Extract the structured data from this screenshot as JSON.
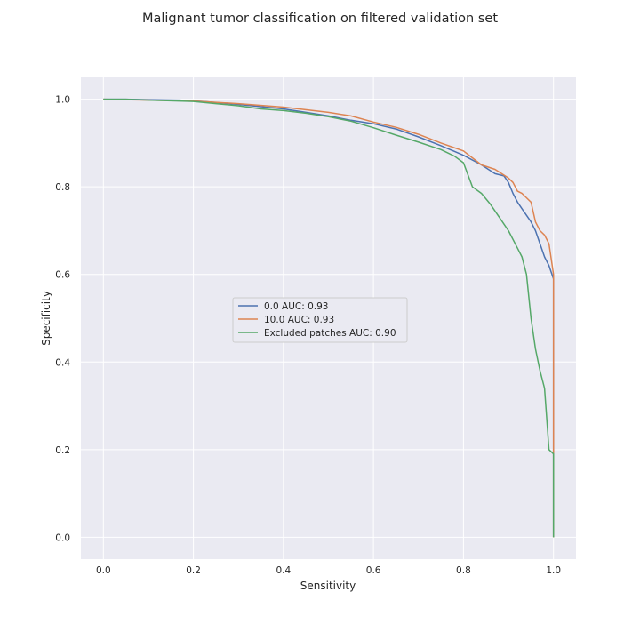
{
  "chart_data": {
    "type": "line",
    "title": "Malignant tumor classification on filtered validation set",
    "xlabel": "Sensitivity",
    "ylabel": "Specificity",
    "xlim": [
      -0.05,
      1.05
    ],
    "ylim": [
      -0.05,
      1.05
    ],
    "xticks": [
      0.0,
      0.2,
      0.4,
      0.6,
      0.8,
      1.0
    ],
    "yticks": [
      0.0,
      0.2,
      0.4,
      0.6,
      0.8,
      1.0
    ],
    "xtick_labels": [
      "0.0",
      "0.2",
      "0.4",
      "0.6",
      "0.8",
      "1.0"
    ],
    "ytick_labels": [
      "0.0",
      "0.2",
      "0.4",
      "0.6",
      "0.8",
      "1.0"
    ],
    "grid": true,
    "legend_position": "center",
    "series": [
      {
        "name": "0.0 AUC: 0.93",
        "color": "#4c72b0",
        "x": [
          0.0,
          0.05,
          0.1,
          0.17,
          0.22,
          0.3,
          0.4,
          0.45,
          0.5,
          0.55,
          0.6,
          0.65,
          0.7,
          0.75,
          0.8,
          0.84,
          0.87,
          0.89,
          0.9,
          0.91,
          0.92,
          0.93,
          0.94,
          0.95,
          0.96,
          0.97,
          0.98,
          0.99,
          1.0,
          1.0
        ],
        "y": [
          1.0,
          1.0,
          0.999,
          0.998,
          0.995,
          0.988,
          0.978,
          0.97,
          0.962,
          0.952,
          0.944,
          0.932,
          0.914,
          0.894,
          0.872,
          0.85,
          0.83,
          0.825,
          0.81,
          0.785,
          0.765,
          0.75,
          0.735,
          0.72,
          0.7,
          0.67,
          0.64,
          0.62,
          0.59,
          0.0
        ]
      },
      {
        "name": "10.0 AUC: 0.93",
        "color": "#dd8452",
        "x": [
          0.0,
          0.05,
          0.1,
          0.2,
          0.3,
          0.4,
          0.5,
          0.55,
          0.6,
          0.65,
          0.7,
          0.75,
          0.8,
          0.84,
          0.87,
          0.9,
          0.91,
          0.92,
          0.93,
          0.94,
          0.95,
          0.96,
          0.97,
          0.98,
          0.99,
          1.0,
          1.0
        ],
        "y": [
          1.0,
          0.999,
          0.998,
          0.996,
          0.99,
          0.982,
          0.97,
          0.962,
          0.948,
          0.936,
          0.92,
          0.9,
          0.882,
          0.85,
          0.84,
          0.82,
          0.81,
          0.79,
          0.785,
          0.775,
          0.765,
          0.72,
          0.7,
          0.69,
          0.67,
          0.6,
          0.0
        ]
      },
      {
        "name": "Excluded patches AUC: 0.90",
        "color": "#55a868",
        "x": [
          0.0,
          0.05,
          0.1,
          0.2,
          0.25,
          0.3,
          0.35,
          0.4,
          0.45,
          0.5,
          0.55,
          0.6,
          0.65,
          0.7,
          0.75,
          0.78,
          0.8,
          0.82,
          0.84,
          0.86,
          0.88,
          0.9,
          0.92,
          0.93,
          0.94,
          0.95,
          0.96,
          0.97,
          0.98,
          0.99,
          1.0,
          1.0
        ],
        "y": [
          1.0,
          1.0,
          0.998,
          0.995,
          0.99,
          0.985,
          0.978,
          0.974,
          0.968,
          0.96,
          0.95,
          0.935,
          0.918,
          0.902,
          0.885,
          0.87,
          0.855,
          0.8,
          0.785,
          0.76,
          0.73,
          0.7,
          0.66,
          0.64,
          0.6,
          0.5,
          0.43,
          0.38,
          0.34,
          0.2,
          0.19,
          0.0
        ]
      }
    ]
  }
}
